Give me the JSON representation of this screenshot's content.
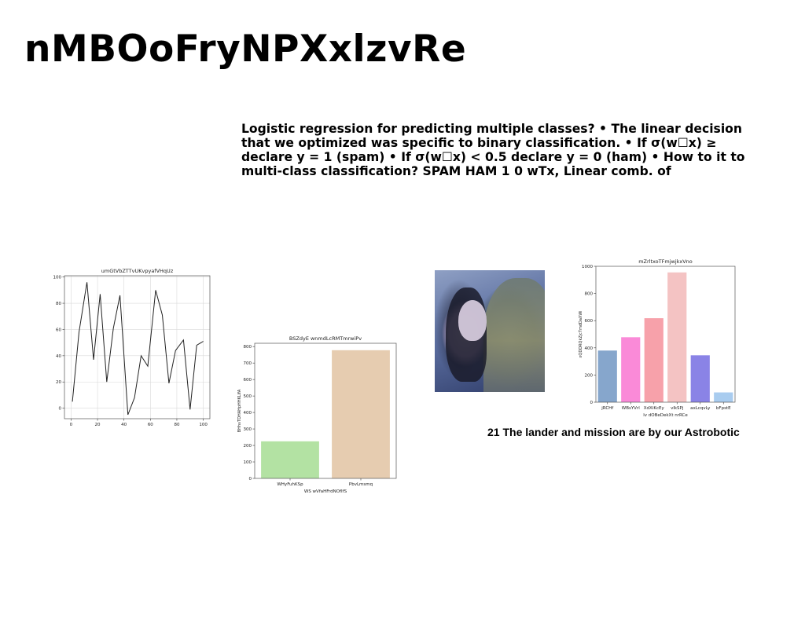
{
  "slide": {
    "title": "nMBOoFryNPXxlzvRe",
    "body": "Logistic regression for predicting multiple classes? • The linear decision that we optimized was specific to binary classification. • If σ(w☐x) ≥ declare y = 1 (spam) • If σ(w☐x) < 0.5 declare y = 0 (ham) • How to it to multi-class classification? SPAM HAM 1 0 wTx, Linear comb. of",
    "caption": "21 The lander and mission are by our Astrobotic"
  },
  "chart_data": [
    {
      "type": "line",
      "title": "umGtVbZTTvUKvpyafVHqUz",
      "xlabel": "",
      "ylabel": "",
      "xlim": [
        -5,
        105
      ],
      "ylim": [
        -8,
        101
      ],
      "xticks": [
        "0",
        "20",
        "40",
        "60",
        "80",
        "100"
      ],
      "yticks": [
        "0",
        "20",
        "40",
        "60",
        "80",
        "100"
      ],
      "grid": true,
      "color": "#222222",
      "x": [
        1,
        6,
        12,
        17,
        22,
        27,
        32,
        37,
        43,
        48,
        53,
        58,
        64,
        69,
        74,
        79,
        85,
        90,
        95,
        100
      ],
      "y": [
        5,
        58,
        96,
        37,
        87,
        20,
        61,
        86,
        -5,
        8,
        40,
        32,
        90,
        71,
        19,
        44,
        52,
        -1,
        48,
        51
      ]
    },
    {
      "type": "bar",
      "title": "BSZdyE wnmdLcRMTmrwiPv",
      "xlabel": "WS wVfaHFrdNOfIfS",
      "ylabel": "BHhvTDHAHpHHKLIfA",
      "ylim": [
        0,
        820
      ],
      "yticks": [
        "0",
        "100",
        "200",
        "300",
        "400",
        "500",
        "600",
        "700",
        "800"
      ],
      "categories": [
        "WHyFuhKSp",
        "PbvLmsmq"
      ],
      "values": [
        225,
        778
      ],
      "colors": [
        "#b3e2a3",
        "#e6ccb0"
      ]
    },
    {
      "type": "bar",
      "title": "mZrltxoTFmjwjkxVno",
      "xlabel": "lv dOBeDekXt nrRCe",
      "ylabel": "xQDDRQkZjcTmdDaXWi",
      "ylim": [
        0,
        1000
      ],
      "yticks": [
        "0",
        "200",
        "400",
        "600",
        "800",
        "1000"
      ],
      "categories": [
        "jRCHf",
        "WBsYVrl",
        "XdXiKcEy",
        "vlkSPj",
        "axLcqvLy",
        "bFpstE"
      ],
      "values": [
        380,
        478,
        618,
        955,
        345,
        72
      ],
      "colors": [
        "#86a6cc",
        "#fa8ad8",
        "#f7a1aa",
        "#f4c3c3",
        "#8a83e6",
        "#a9ccef"
      ]
    }
  ]
}
